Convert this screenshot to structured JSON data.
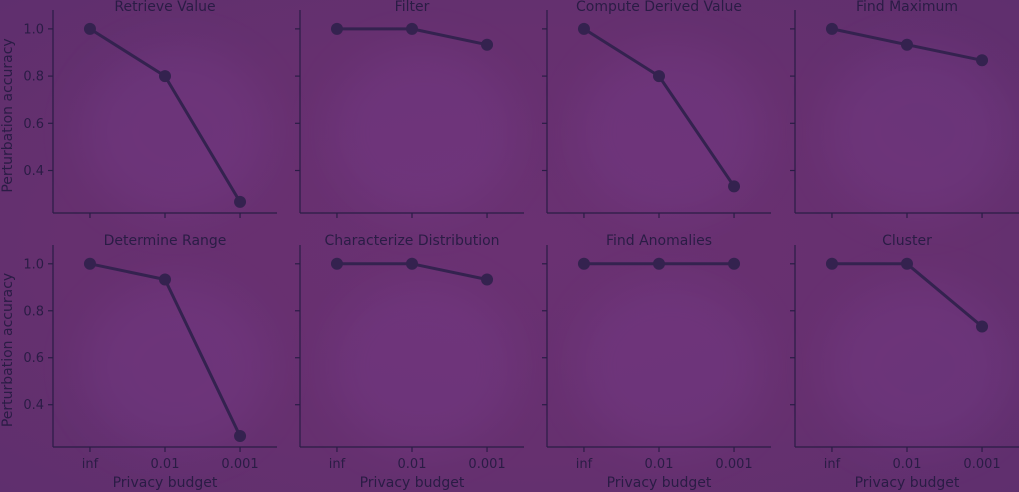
{
  "chart_data": {
    "type": "line",
    "layout": "grid-2x4",
    "xlabel": "Privacy budget",
    "ylabel": "Perturbation accuracy",
    "categories": [
      "inf",
      "0.01",
      "0.001"
    ],
    "ylim": [
      0.22,
      1.08
    ],
    "yticks": [
      0.4,
      0.6,
      0.8,
      1.0
    ],
    "ytick_labels": [
      "0.4",
      "0.6",
      "0.8",
      "1.0"
    ],
    "colors": {
      "line": "#34224f",
      "text": "#2a1c45",
      "background": "#67306e"
    },
    "panels": [
      {
        "title": "Retrieve Value",
        "values": [
          1.0,
          0.8,
          0.267
        ]
      },
      {
        "title": "Filter",
        "values": [
          1.0,
          1.0,
          0.933
        ]
      },
      {
        "title": "Compute Derived Value",
        "values": [
          1.0,
          0.8,
          0.333
        ]
      },
      {
        "title": "Find Maximum",
        "values": [
          1.0,
          0.933,
          0.867
        ]
      },
      {
        "title": "Determine Range",
        "values": [
          1.0,
          0.933,
          0.267
        ]
      },
      {
        "title": "Characterize Distribution",
        "values": [
          1.0,
          1.0,
          0.933
        ]
      },
      {
        "title": "Find Anomalies",
        "values": [
          1.0,
          1.0,
          1.0
        ]
      },
      {
        "title": "Cluster",
        "values": [
          1.0,
          1.0,
          0.733
        ]
      }
    ]
  }
}
